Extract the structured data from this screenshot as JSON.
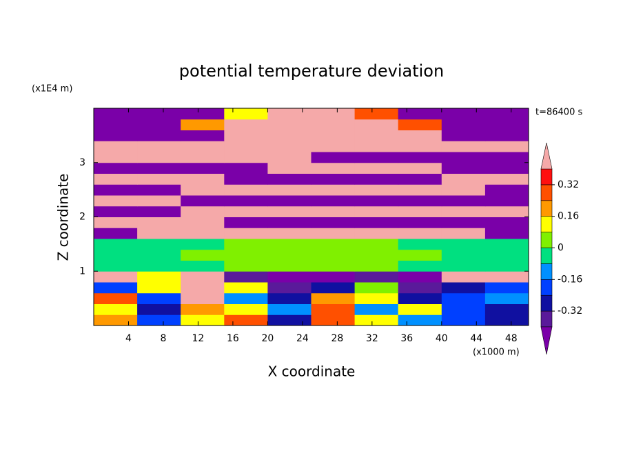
{
  "chart_data": {
    "type": "contour",
    "title": "potential temperature deviation",
    "x_label": "X coordinate",
    "y_label": "Z coordinate",
    "x_unit": "(x1000 m)",
    "y_unit": "(x1E4 m)",
    "annotation": "t=86400 s",
    "xlim": [
      0,
      50
    ],
    "ylim": [
      0,
      4
    ],
    "xticks": [
      4,
      8,
      12,
      16,
      20,
      24,
      28,
      32,
      36,
      40,
      44,
      48
    ],
    "yticks": [
      1,
      2,
      3
    ],
    "x_edges": [
      0,
      5,
      10,
      15,
      20,
      25,
      30,
      35,
      40,
      45,
      50
    ],
    "y_edges": [
      0,
      0.2,
      0.4,
      0.6,
      0.8,
      1.0,
      1.2,
      1.4,
      1.6,
      1.8,
      2.0,
      2.2,
      2.4,
      2.6,
      2.8,
      3.0,
      3.2,
      3.4,
      3.6,
      3.8,
      4.0
    ],
    "values": [
      [
        0.2,
        -0.2,
        0.1,
        0.3,
        -0.3,
        0.25,
        0.1,
        -0.1,
        -0.2,
        -0.3
      ],
      [
        0.1,
        -0.3,
        0.2,
        0.1,
        -0.1,
        0.3,
        -0.1,
        0.1,
        -0.2,
        -0.25
      ],
      [
        0.3,
        -0.2,
        0.45,
        -0.1,
        -0.25,
        0.2,
        0.15,
        -0.3,
        -0.2,
        -0.1
      ],
      [
        -0.2,
        0.1,
        0.5,
        0.1,
        -0.38,
        -0.3,
        0.05,
        -0.35,
        -0.28,
        -0.2
      ],
      [
        0.45,
        0.1,
        0.45,
        -0.38,
        -0.45,
        -0.45,
        -0.38,
        -0.45,
        0.45,
        0.45
      ],
      [
        -0.05,
        -0.03,
        -0.02,
        0.02,
        0.03,
        0.04,
        0.02,
        -0.03,
        -0.02,
        -0.05
      ],
      [
        -0.05,
        -0.02,
        0.03,
        0.04,
        0.05,
        0.04,
        0.04,
        0.03,
        -0.02,
        -0.04
      ],
      [
        -0.04,
        -0.04,
        -0.03,
        0.02,
        0.03,
        0.03,
        0.02,
        -0.03,
        -0.04,
        -0.05
      ],
      [
        -0.45,
        0.45,
        0.45,
        0.45,
        0.45,
        0.45,
        0.45,
        0.45,
        0.45,
        -0.45
      ],
      [
        0.45,
        0.45,
        0.45,
        -0.45,
        -0.45,
        -0.45,
        -0.45,
        -0.45,
        -0.45,
        -0.45
      ],
      [
        -0.45,
        -0.45,
        0.45,
        0.45,
        0.45,
        0.45,
        0.45,
        0.45,
        0.45,
        0.45
      ],
      [
        0.45,
        0.45,
        -0.45,
        -0.45,
        -0.45,
        -0.45,
        -0.45,
        -0.45,
        -0.45,
        -0.45
      ],
      [
        -0.45,
        -0.45,
        0.45,
        0.45,
        0.45,
        0.45,
        0.45,
        0.45,
        0.45,
        -0.45
      ],
      [
        0.45,
        0.45,
        0.45,
        -0.45,
        -0.45,
        -0.45,
        -0.45,
        -0.45,
        0.45,
        0.45
      ],
      [
        -0.45,
        -0.45,
        -0.45,
        -0.45,
        0.45,
        0.45,
        0.45,
        0.45,
        -0.45,
        -0.45
      ],
      [
        0.45,
        0.45,
        0.45,
        0.45,
        0.45,
        -0.45,
        -0.45,
        -0.45,
        -0.45,
        -0.45
      ],
      [
        0.45,
        0.45,
        0.45,
        0.45,
        0.45,
        0.45,
        0.45,
        0.45,
        0.45,
        0.45
      ],
      [
        -0.45,
        -0.45,
        -0.45,
        0.45,
        0.45,
        0.45,
        0.45,
        0.45,
        -0.45,
        -0.45
      ],
      [
        -0.45,
        -0.45,
        0.2,
        0.45,
        0.45,
        0.45,
        0.45,
        0.3,
        -0.45,
        -0.45
      ],
      [
        -0.45,
        -0.45,
        -0.45,
        0.1,
        0.45,
        0.45,
        0.3,
        -0.45,
        -0.45,
        -0.45
      ]
    ],
    "levels": [
      -0.4,
      -0.32,
      -0.24,
      -0.16,
      -0.08,
      0,
      0.08,
      0.16,
      0.24,
      0.32,
      0.4
    ],
    "colors": [
      "#7a00a8",
      "#5a1a9a",
      "#1010a0",
      "#0040ff",
      "#0090ff",
      "#00e080",
      "#80f000",
      "#ffff00",
      "#ff9900",
      "#ff5000",
      "#ff1010",
      "#f5a9a9"
    ],
    "colorbar_ticks": [
      -0.32,
      -0.16,
      0,
      0.16,
      0.32
    ]
  }
}
